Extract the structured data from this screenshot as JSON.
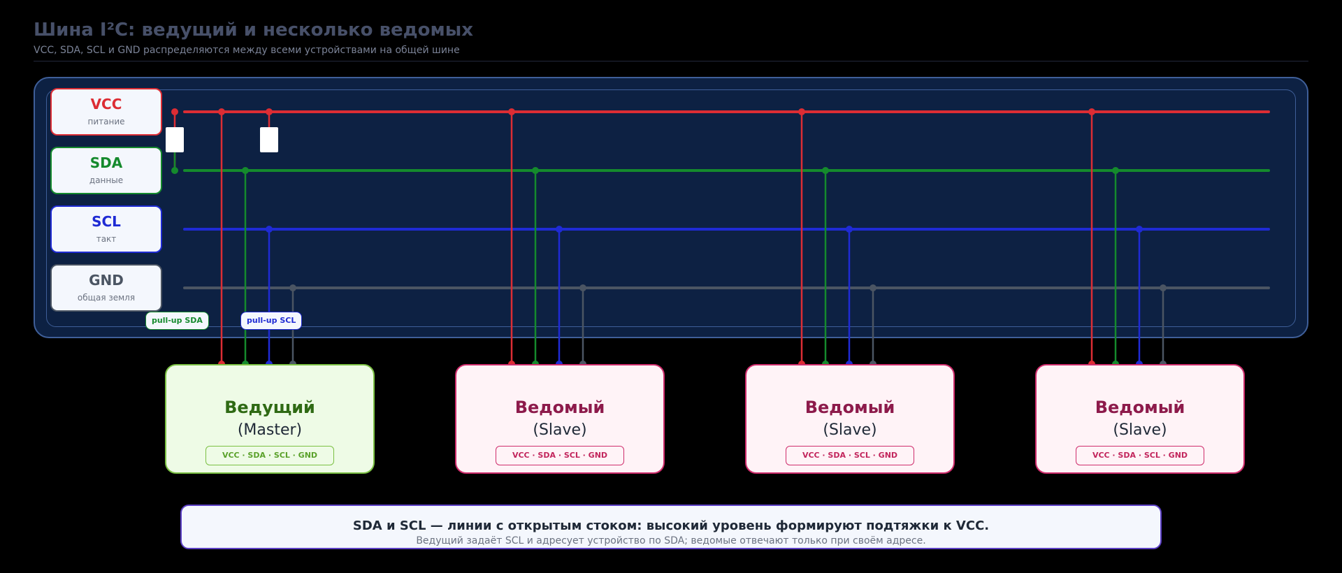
{
  "header": {
    "title": "Шина I²C: ведущий и несколько ведомых",
    "subtitle": "VCC, SDA, SCL и GND распределяются между всеми устройствами на общей шине"
  },
  "bus_lines": [
    {
      "name": "VCC",
      "desc": "питание",
      "color": "#dc2d34"
    },
    {
      "name": "SDA",
      "desc": "данные",
      "color": "#158a2d"
    },
    {
      "name": "SCL",
      "desc": "такт",
      "color": "#1f2bd4"
    },
    {
      "name": "GND",
      "desc": "общая земля",
      "color": "#4b5563"
    }
  ],
  "pullups": {
    "sda_label": "pull-up SDA",
    "scl_label": "pull-up SCL"
  },
  "devices": [
    {
      "name": "Ведущий",
      "role": "(Master)",
      "pins": "VCC · SDA · SCL · GND",
      "type": "master"
    },
    {
      "name": "Ведомый",
      "role": "(Slave)",
      "pins": "VCC · SDA · SCL · GND",
      "type": "slave"
    },
    {
      "name": "Ведомый",
      "role": "(Slave)",
      "pins": "VCC · SDA · SCL · GND",
      "type": "slave"
    },
    {
      "name": "Ведомый",
      "role": "(Slave)",
      "pins": "VCC · SDA · SCL · GND",
      "type": "slave"
    }
  ],
  "note": {
    "main": "SDA и SCL — линии с открытым стоком: высокий уровень формируют подтяжки к VCC.",
    "sub": "Ведущий задаёт SCL и адресует устройство по SDA; ведомые отвечают только при своём адресе."
  },
  "colors": {
    "vcc": "#dc2d34",
    "sda": "#158a2d",
    "scl": "#1f2bd4",
    "gnd": "#4b5563",
    "panel": "#0d2143",
    "master_border": "#7bc043",
    "slave_border": "#cf2d6c"
  }
}
